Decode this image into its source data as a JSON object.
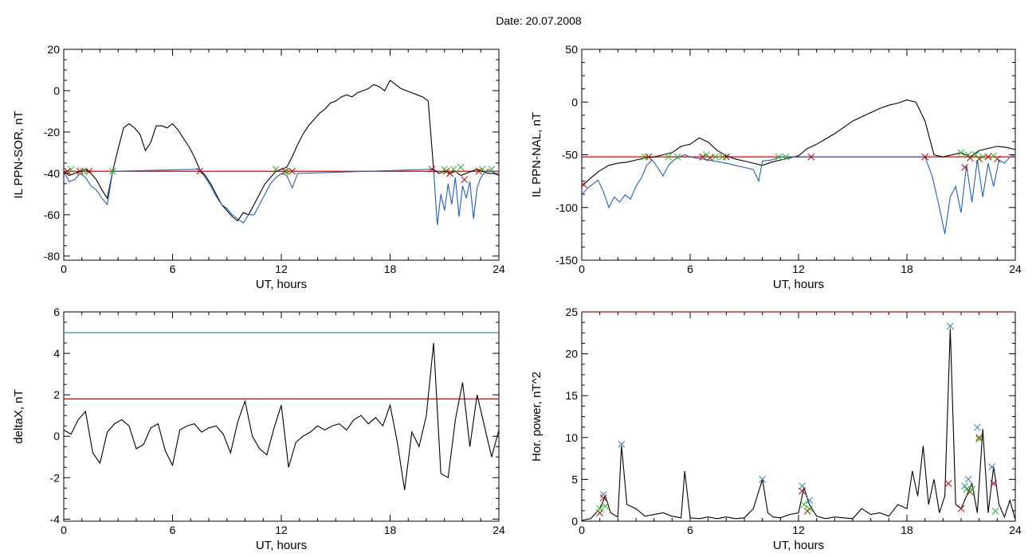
{
  "page": {
    "title": "Date:  20.07.2008"
  },
  "chart_data": [
    {
      "type": "line",
      "ylabel": "IL PPN-SOR, nT",
      "xlabel": "UT, hours",
      "xlim": [
        0,
        24
      ],
      "ylim": [
        -82,
        20
      ],
      "xticks": [
        0,
        6,
        12,
        18,
        24
      ],
      "yticks": [
        -80,
        -60,
        -40,
        -20,
        0,
        20
      ],
      "threshold": {
        "value": -39,
        "color": "#e00000"
      },
      "series": [
        {
          "color": "#000000",
          "x": [
            0,
            0.3,
            0.6,
            0.9,
            1.2,
            1.5,
            1.8,
            2.1,
            2.4,
            2.7,
            3.0,
            3.3,
            3.6,
            3.9,
            4.2,
            4.5,
            4.8,
            5.1,
            5.4,
            5.7,
            6.0,
            6.3,
            6.6,
            6.9,
            7.2,
            7.5,
            7.8,
            8.1,
            8.4,
            8.7,
            9.0,
            9.3,
            9.6,
            9.9,
            10.2,
            10.5,
            10.8,
            11.1,
            11.4,
            11.7,
            12.0,
            12.3,
            12.6,
            12.9,
            13.2,
            13.5,
            13.8,
            14.1,
            14.4,
            14.7,
            15.0,
            15.3,
            15.6,
            15.9,
            16.2,
            16.5,
            16.8,
            17.1,
            17.4,
            17.7,
            18.0,
            18.3,
            18.6,
            18.9,
            19.2,
            19.5,
            19.8,
            20.1,
            20.4,
            20.7,
            21.0,
            21.3,
            21.6,
            21.9,
            22.2,
            22.5,
            22.8,
            23.1,
            23.4,
            23.7,
            24.0
          ],
          "y": [
            -39,
            -41,
            -40,
            -39,
            -38,
            -40,
            -43,
            -48,
            -52,
            -39,
            -28,
            -18,
            -16,
            -18,
            -21,
            -29,
            -25,
            -17,
            -17,
            -18,
            -16,
            -19,
            -23,
            -27,
            -32,
            -38,
            -41,
            -45,
            -50,
            -55,
            -58,
            -61,
            -63,
            -59,
            -60,
            -55,
            -50,
            -45,
            -42,
            -39,
            -38,
            -37,
            -32,
            -26,
            -21,
            -17,
            -14,
            -11,
            -9,
            -6,
            -5,
            -3,
            -2,
            -3,
            -1,
            0,
            1,
            3,
            2,
            0,
            5,
            3,
            1,
            0,
            -1,
            -2,
            -3,
            -5,
            -38,
            -40,
            -39,
            -40,
            -39,
            -41,
            -40,
            -39,
            -38,
            -39,
            -40,
            -40,
            -41
          ]
        },
        {
          "color": "#1f5fc4",
          "x": [
            0,
            0.3,
            0.6,
            0.9,
            1.2,
            1.5,
            1.8,
            2.1,
            2.4,
            2.7,
            7.5,
            7.8,
            8.1,
            8.4,
            8.7,
            9.0,
            9.3,
            9.6,
            9.9,
            10.2,
            10.5,
            10.8,
            11.1,
            11.4,
            11.7,
            12.0,
            12.3,
            12.6,
            12.9,
            20.4,
            20.6,
            20.8,
            21.0,
            21.2,
            21.4,
            21.6,
            21.8,
            22.0,
            22.2,
            22.4,
            22.6,
            22.8,
            23.0,
            23.2,
            23.4,
            23.6,
            23.8,
            24.0
          ],
          "y": [
            -39,
            -44,
            -43,
            -40,
            -42,
            -46,
            -48,
            -52,
            -55,
            -39,
            -38,
            -42,
            -46,
            -51,
            -55,
            -57,
            -60,
            -62,
            -64,
            -60,
            -60,
            -55,
            -50,
            -45,
            -42,
            -40,
            -41,
            -47,
            -40,
            -38,
            -65,
            -50,
            -58,
            -45,
            -55,
            -42,
            -61,
            -46,
            -52,
            -44,
            -62,
            -47,
            -42,
            -40,
            -38,
            -39,
            -40,
            -40
          ]
        }
      ],
      "markers": [
        {
          "color": "#c00000",
          "x": [
            0.2,
            0.9,
            1.4,
            7.5,
            12.2,
            12.6,
            20.3,
            21.1,
            21.3,
            22.1,
            22.9
          ],
          "y": [
            -39,
            -39,
            -39,
            -39,
            -39,
            -39,
            -38,
            -39,
            -40,
            -43,
            -39
          ]
        },
        {
          "color": "#20c020",
          "x": [
            0.4,
            1.1,
            2.7,
            11.7,
            12.3,
            21.0,
            21.5,
            21.9,
            23.1,
            23.6
          ],
          "y": [
            -38,
            -39,
            -39,
            -38,
            -39,
            -38,
            -38,
            -37,
            -38,
            -38
          ]
        }
      ]
    },
    {
      "type": "line",
      "ylabel": "IL PPN-NAL, nT",
      "xlabel": "UT, hours",
      "xlim": [
        0,
        24
      ],
      "ylim": [
        -150,
        50
      ],
      "xticks": [
        0,
        6,
        12,
        18,
        24
      ],
      "yticks": [
        -150,
        -100,
        -50,
        0,
        50
      ],
      "threshold": {
        "value": -52,
        "color": "#e00000"
      },
      "series": [
        {
          "color": "#000000",
          "x": [
            0,
            0.5,
            1.0,
            1.5,
            2.0,
            2.5,
            3.0,
            3.5,
            4.0,
            4.5,
            5.0,
            5.5,
            6.0,
            6.5,
            7.0,
            7.5,
            8.0,
            8.5,
            9.0,
            9.5,
            10.0,
            10.5,
            11.0,
            11.5,
            12.0,
            12.5,
            13.0,
            13.5,
            14.0,
            14.5,
            15.0,
            15.5,
            16.0,
            16.5,
            17.0,
            17.5,
            18.0,
            18.5,
            19.0,
            19.5,
            20.0,
            20.5,
            21.0,
            21.5,
            22.0,
            22.5,
            23.0,
            23.5,
            24.0
          ],
          "y": [
            -80,
            -72,
            -65,
            -60,
            -58,
            -57,
            -55,
            -53,
            -52,
            -50,
            -48,
            -42,
            -40,
            -34,
            -38,
            -46,
            -51,
            -54,
            -56,
            -58,
            -60,
            -57,
            -55,
            -53,
            -51,
            -44,
            -40,
            -35,
            -30,
            -24,
            -18,
            -14,
            -10,
            -6,
            -3,
            -1,
            2,
            0,
            -18,
            -50,
            -52,
            -50,
            -48,
            -52,
            -46,
            -44,
            -42,
            -43,
            -45
          ]
        },
        {
          "color": "#1f5fc4",
          "x": [
            0,
            0.3,
            0.6,
            0.9,
            1.2,
            1.5,
            1.8,
            2.1,
            2.4,
            2.7,
            3.0,
            3.3,
            3.6,
            3.9,
            4.2,
            4.5,
            4.8,
            5.1,
            5.4,
            5.7,
            6.0,
            7.0,
            8.0,
            8.5,
            9.0,
            9.5,
            9.8,
            10.0,
            10.5,
            11.0,
            19.0,
            19.4,
            19.8,
            20.1,
            20.4,
            20.7,
            21.0,
            21.3,
            21.6,
            21.9,
            22.2,
            22.5,
            22.8,
            23.1,
            23.4,
            23.7,
            24.0
          ],
          "y": [
            -88,
            -82,
            -78,
            -74,
            -85,
            -100,
            -90,
            -95,
            -88,
            -92,
            -80,
            -72,
            -60,
            -55,
            -62,
            -70,
            -60,
            -55,
            -52,
            -50,
            -52,
            -55,
            -58,
            -60,
            -62,
            -64,
            -75,
            -56,
            -55,
            -52,
            -52,
            -70,
            -100,
            -125,
            -90,
            -80,
            -105,
            -60,
            -95,
            -55,
            -90,
            -58,
            -80,
            -55,
            -58,
            -52,
            -50
          ]
        }
      ],
      "markers": [
        {
          "color": "#c00000",
          "x": [
            0.1,
            3.7,
            6.7,
            7.1,
            8.0,
            12.7,
            19.0,
            21.2,
            21.5,
            22.0,
            22.5,
            23.0
          ],
          "y": [
            -78,
            -52,
            -52,
            -53,
            -52,
            -52,
            -52,
            -62,
            -53,
            -54,
            -52,
            -54
          ]
        },
        {
          "color": "#20c020",
          "x": [
            3.5,
            4.8,
            5.3,
            6.9,
            7.4,
            7.8,
            10.9,
            11.3,
            21.0,
            21.4,
            21.8,
            22.2,
            22.8
          ],
          "y": [
            -52,
            -52,
            -52,
            -50,
            -52,
            -52,
            -52,
            -52,
            -48,
            -50,
            -50,
            -52,
            -51
          ]
        }
      ]
    },
    {
      "type": "line",
      "ylabel": "deltaX, nT",
      "xlabel": "UT, hours",
      "xlim": [
        0,
        24
      ],
      "ylim": [
        -4.1,
        6
      ],
      "xticks": [
        0,
        6,
        12,
        18,
        24
      ],
      "yticks": [
        -4,
        -2,
        0,
        2,
        4,
        6
      ],
      "thresholds": [
        {
          "value": 5,
          "color": "#2a7fb4"
        },
        {
          "value": 1.8,
          "color": "#e00000"
        }
      ],
      "series": [
        {
          "color": "#000000",
          "x": [
            0,
            0.4,
            0.8,
            1.2,
            1.6,
            2.0,
            2.4,
            2.8,
            3.2,
            3.6,
            4.0,
            4.4,
            4.8,
            5.2,
            5.6,
            6.0,
            6.4,
            6.8,
            7.2,
            7.6,
            8.0,
            8.4,
            8.8,
            9.2,
            9.6,
            10.0,
            10.4,
            10.8,
            11.2,
            11.6,
            12.0,
            12.4,
            12.8,
            13.2,
            13.6,
            14.0,
            14.4,
            14.8,
            15.2,
            15.6,
            16.0,
            16.4,
            16.8,
            17.2,
            17.6,
            18.0,
            18.4,
            18.8,
            19.2,
            19.6,
            20.0,
            20.4,
            20.8,
            21.2,
            21.6,
            22.0,
            22.4,
            22.8,
            23.2,
            23.6,
            24.0
          ],
          "y": [
            0.3,
            0.1,
            0.8,
            1.2,
            -0.8,
            -1.3,
            0.2,
            0.6,
            0.8,
            0.5,
            -0.6,
            -0.4,
            0.4,
            0.6,
            -0.7,
            -1.4,
            0.3,
            0.5,
            0.6,
            0.2,
            0.4,
            0.5,
            0.1,
            -0.8,
            0.7,
            1.7,
            0.0,
            -0.6,
            -0.9,
            0.4,
            1.5,
            -1.5,
            -0.3,
            0.0,
            0.2,
            0.5,
            0.3,
            0.5,
            0.6,
            0.3,
            0.8,
            1.0,
            0.6,
            0.9,
            0.5,
            1.5,
            -0.3,
            -2.6,
            0.2,
            -0.5,
            1.0,
            4.5,
            -1.8,
            -2.0,
            0.8,
            2.6,
            -0.5,
            2.0,
            0.5,
            -1.0,
            0.3
          ]
        }
      ],
      "markers": []
    },
    {
      "type": "line",
      "ylabel": "Hor. power, nT^2",
      "xlabel": "UT, hours",
      "xlim": [
        0,
        24
      ],
      "ylim": [
        0,
        25
      ],
      "xticks": [
        0,
        6,
        12,
        18,
        24
      ],
      "yticks": [
        0,
        5,
        10,
        15,
        20,
        25
      ],
      "threshold": {
        "value": 25,
        "color": "#e00000"
      },
      "series": [
        {
          "color": "#000000",
          "x": [
            0,
            0.5,
            1.0,
            1.3,
            1.6,
            2.0,
            2.2,
            2.5,
            3.0,
            3.5,
            4.0,
            4.5,
            5.0,
            5.5,
            5.7,
            6.0,
            6.5,
            7.0,
            7.5,
            8.0,
            8.5,
            9.0,
            9.5,
            10.0,
            10.3,
            10.6,
            11.0,
            11.5,
            12.0,
            12.3,
            12.6,
            13.0,
            13.5,
            14.0,
            14.5,
            15.0,
            15.5,
            16.0,
            16.5,
            17.0,
            17.5,
            18.0,
            18.3,
            18.6,
            18.9,
            19.2,
            19.5,
            19.8,
            20.1,
            20.4,
            20.7,
            21.0,
            21.3,
            21.6,
            21.9,
            22.2,
            22.5,
            22.8,
            23.1,
            23.4,
            23.7,
            24.0
          ],
          "y": [
            0.1,
            0.3,
            1.5,
            3.0,
            1.0,
            0.5,
            9.0,
            2.0,
            1.5,
            0.6,
            0.8,
            1.0,
            0.6,
            0.4,
            6.0,
            0.4,
            0.3,
            0.5,
            0.3,
            0.5,
            0.3,
            0.4,
            1.5,
            5.0,
            1.0,
            0.5,
            0.4,
            0.8,
            1.0,
            4.0,
            2.0,
            0.6,
            0.3,
            0.5,
            0.4,
            0.3,
            1.5,
            0.8,
            1.0,
            0.6,
            2.0,
            1.5,
            6.0,
            3.0,
            9.0,
            2.0,
            5.0,
            1.0,
            3.0,
            23.0,
            2.0,
            1.5,
            3.0,
            4.5,
            1.0,
            11.0,
            1.0,
            6.5,
            2.0,
            0.5,
            2.5,
            0.2
          ]
        }
      ],
      "markers": [
        {
          "color": "#2a7fb4",
          "x": [
            1.2,
            2.2,
            10.0,
            12.2,
            12.6,
            20.4,
            21.2,
            21.4,
            21.9,
            22.7
          ],
          "y": [
            3.2,
            9.2,
            5.0,
            4.2,
            2.5,
            23.3,
            4.2,
            5.0,
            11.2,
            6.5
          ]
        },
        {
          "color": "#c00000",
          "x": [
            1.0,
            1.2,
            12.2,
            12.5,
            20.3,
            21.0,
            21.5,
            22.0,
            22.8
          ],
          "y": [
            1.0,
            2.8,
            3.6,
            1.2,
            4.5,
            1.5,
            3.5,
            10.0,
            4.5
          ]
        },
        {
          "color": "#20c020",
          "x": [
            1.0,
            1.3,
            12.3,
            12.6,
            21.3,
            21.6,
            22.0,
            22.9
          ],
          "y": [
            1.5,
            1.8,
            2.0,
            1.5,
            3.8,
            3.8,
            9.8,
            1.2
          ]
        }
      ]
    }
  ]
}
